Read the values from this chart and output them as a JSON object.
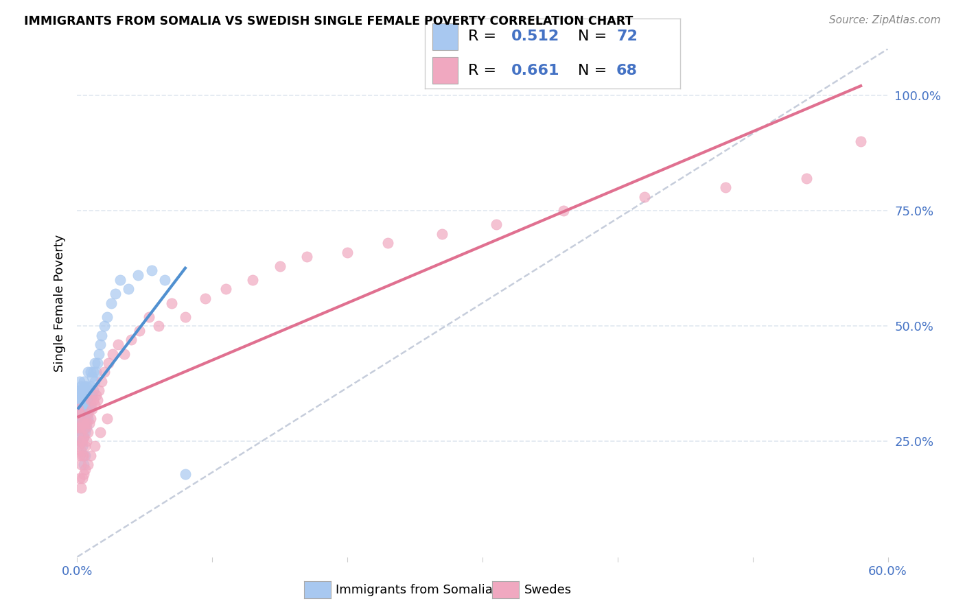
{
  "title": "IMMIGRANTS FROM SOMALIA VS SWEDISH SINGLE FEMALE POVERTY CORRELATION CHART",
  "source": "Source: ZipAtlas.com",
  "ylabel": "Single Female Poverty",
  "legend_label1": "Immigrants from Somalia",
  "legend_label2": "Swedes",
  "R1": "0.512",
  "N1": "72",
  "R2": "0.661",
  "N2": "68",
  "color_blue": "#a8c8f0",
  "color_pink": "#f0a8c0",
  "color_blue_dark": "#4472c4",
  "color_pink_line": "#e07090",
  "color_blue_line": "#5090d0",
  "color_dashed": "#c0c8d8",
  "xlim": [
    0.0,
    0.6
  ],
  "ylim": [
    0.0,
    1.1
  ],
  "ytick_positions": [
    0.25,
    0.5,
    0.75,
    1.0
  ],
  "ytick_labels": [
    "25.0%",
    "50.0%",
    "75.0%",
    "100.0%"
  ],
  "somalia_x": [
    0.001,
    0.001,
    0.001,
    0.001,
    0.001,
    0.002,
    0.002,
    0.002,
    0.002,
    0.002,
    0.002,
    0.002,
    0.003,
    0.003,
    0.003,
    0.003,
    0.003,
    0.003,
    0.003,
    0.004,
    0.004,
    0.004,
    0.004,
    0.004,
    0.004,
    0.005,
    0.005,
    0.005,
    0.005,
    0.005,
    0.005,
    0.006,
    0.006,
    0.006,
    0.006,
    0.006,
    0.007,
    0.007,
    0.007,
    0.007,
    0.008,
    0.008,
    0.008,
    0.008,
    0.009,
    0.009,
    0.01,
    0.01,
    0.01,
    0.011,
    0.011,
    0.012,
    0.012,
    0.013,
    0.013,
    0.014,
    0.015,
    0.016,
    0.017,
    0.018,
    0.02,
    0.022,
    0.025,
    0.028,
    0.032,
    0.038,
    0.045,
    0.055,
    0.065,
    0.08,
    0.005,
    0.006
  ],
  "somalia_y": [
    0.28,
    0.3,
    0.32,
    0.34,
    0.36,
    0.26,
    0.28,
    0.3,
    0.32,
    0.34,
    0.36,
    0.38,
    0.25,
    0.27,
    0.29,
    0.31,
    0.33,
    0.35,
    0.37,
    0.24,
    0.27,
    0.29,
    0.31,
    0.34,
    0.36,
    0.26,
    0.28,
    0.3,
    0.33,
    0.35,
    0.38,
    0.27,
    0.29,
    0.32,
    0.34,
    0.37,
    0.28,
    0.31,
    0.34,
    0.37,
    0.3,
    0.33,
    0.36,
    0.4,
    0.32,
    0.35,
    0.33,
    0.37,
    0.4,
    0.35,
    0.39,
    0.36,
    0.4,
    0.38,
    0.42,
    0.4,
    0.42,
    0.44,
    0.46,
    0.48,
    0.5,
    0.52,
    0.55,
    0.57,
    0.6,
    0.58,
    0.61,
    0.62,
    0.6,
    0.18,
    0.2,
    0.22
  ],
  "swedes_x": [
    0.001,
    0.001,
    0.001,
    0.002,
    0.002,
    0.002,
    0.002,
    0.003,
    0.003,
    0.003,
    0.003,
    0.004,
    0.004,
    0.004,
    0.005,
    0.005,
    0.005,
    0.006,
    0.006,
    0.007,
    0.007,
    0.008,
    0.008,
    0.009,
    0.01,
    0.01,
    0.011,
    0.012,
    0.013,
    0.014,
    0.015,
    0.016,
    0.018,
    0.02,
    0.023,
    0.026,
    0.03,
    0.035,
    0.04,
    0.046,
    0.053,
    0.06,
    0.07,
    0.08,
    0.095,
    0.11,
    0.13,
    0.15,
    0.17,
    0.2,
    0.23,
    0.27,
    0.31,
    0.36,
    0.42,
    0.48,
    0.54,
    0.58,
    0.002,
    0.003,
    0.004,
    0.005,
    0.006,
    0.008,
    0.01,
    0.013,
    0.017,
    0.022
  ],
  "swedes_y": [
    0.24,
    0.28,
    0.32,
    0.22,
    0.25,
    0.28,
    0.31,
    0.2,
    0.23,
    0.27,
    0.3,
    0.22,
    0.25,
    0.29,
    0.22,
    0.26,
    0.29,
    0.24,
    0.28,
    0.25,
    0.29,
    0.27,
    0.31,
    0.29,
    0.3,
    0.34,
    0.32,
    0.34,
    0.33,
    0.35,
    0.34,
    0.36,
    0.38,
    0.4,
    0.42,
    0.44,
    0.46,
    0.44,
    0.47,
    0.49,
    0.52,
    0.5,
    0.55,
    0.52,
    0.56,
    0.58,
    0.6,
    0.63,
    0.65,
    0.66,
    0.68,
    0.7,
    0.72,
    0.75,
    0.78,
    0.8,
    0.82,
    0.9,
    0.17,
    0.15,
    0.17,
    0.18,
    0.19,
    0.2,
    0.22,
    0.24,
    0.27,
    0.3
  ],
  "background": "#ffffff",
  "grid_color": "#e0e8f0"
}
